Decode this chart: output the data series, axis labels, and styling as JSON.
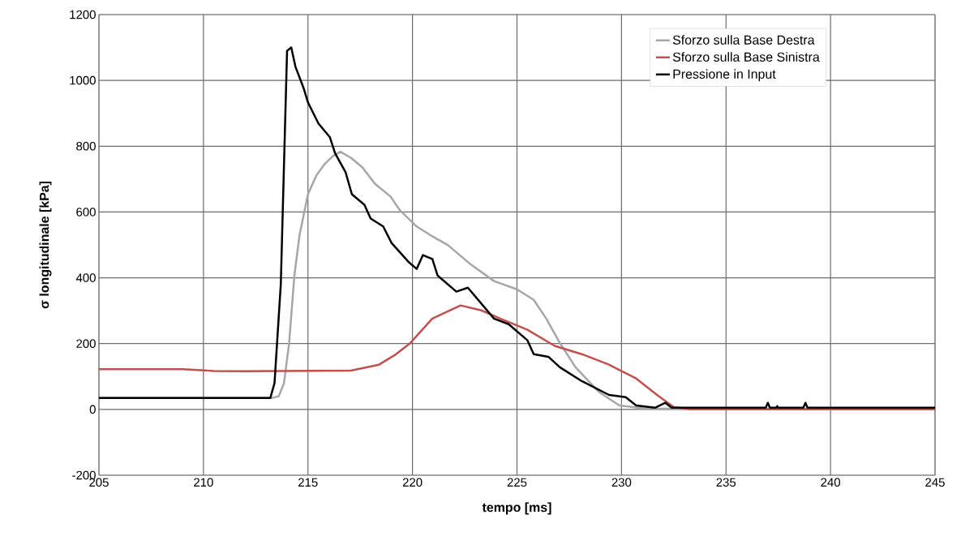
{
  "chart_data": {
    "type": "line",
    "xlabel": "tempo [ms]",
    "ylabel": "σ longitudinale [kPa]",
    "xlim": [
      205,
      245
    ],
    "xticks": [
      205,
      210,
      215,
      220,
      225,
      230,
      235,
      240,
      245
    ],
    "ylim": [
      -200,
      1200
    ],
    "yticks": [
      -200,
      0,
      200,
      400,
      600,
      800,
      1000,
      1200
    ],
    "grid": true,
    "legend": "top right",
    "marker": "none",
    "line_style": "solid",
    "series": [
      {
        "name": "Sforzo sulla Base Destra",
        "color": "#a6a6a6",
        "x": [
          205,
          213.3,
          213.6,
          213.85,
          214.1,
          214.35,
          214.6,
          215.0,
          215.4,
          215.8,
          216.2,
          216.55,
          217.05,
          217.6,
          218.2,
          218.95,
          219.4,
          220.2,
          220.95,
          221.7,
          222.8,
          223.9,
          225.0,
          225.8,
          226.4,
          227.05,
          227.8,
          228.9,
          229.9,
          231.2,
          245
        ],
        "values": [
          35,
          35,
          40,
          79,
          202,
          407,
          531,
          654,
          711,
          746,
          770,
          783,
          765,
          736,
          686,
          647,
          605,
          556,
          526,
          499,
          440,
          390,
          365,
          333,
          276,
          202,
          128,
          54,
          12,
          2,
          2
        ]
      },
      {
        "name": "Sforzo sulla Base Sinistra",
        "color": "#c0504d",
        "x": [
          205,
          209,
          210.5,
          212,
          217.05,
          218.4,
          219.15,
          219.9,
          220.95,
          222.3,
          223.3,
          224.2,
          225.5,
          226.8,
          228.1,
          229.4,
          230.7,
          231.7,
          232.5,
          233.3,
          245
        ],
        "values": [
          122,
          122,
          117,
          116,
          118,
          136,
          165,
          202,
          276,
          316,
          301,
          276,
          242,
          193,
          168,
          136,
          94,
          44,
          7,
          0,
          0
        ]
      },
      {
        "name": "Pressione in Input",
        "color": "#000000",
        "x": [
          205,
          213.2,
          213.4,
          213.7,
          214.0,
          214.2,
          214.4,
          214.8,
          215.0,
          215.5,
          216.05,
          216.3,
          216.8,
          217.1,
          217.7,
          218.0,
          218.6,
          219.0,
          219.8,
          220.2,
          220.5,
          220.95,
          221.2,
          222.1,
          222.65,
          223.9,
          224.6,
          225.5,
          225.8,
          226.5,
          227.05,
          228.1,
          229.4,
          230.2,
          230.7,
          231.6,
          232.1,
          232.4,
          236.9,
          237.0,
          237.1,
          237.4,
          237.45,
          237.5,
          238.7,
          238.8,
          238.9,
          245
        ],
        "values": [
          35,
          35,
          80,
          380,
          1090,
          1100,
          1042,
          975,
          933,
          869,
          827,
          778,
          721,
          654,
          622,
          580,
          556,
          506,
          449,
          427,
          469,
          457,
          407,
          358,
          370,
          276,
          259,
          210,
          168,
          160,
          128,
          86,
          44,
          37,
          12,
          5,
          20,
          5,
          5,
          20,
          5,
          5,
          10,
          5,
          5,
          20,
          5,
          5
        ]
      }
    ]
  }
}
